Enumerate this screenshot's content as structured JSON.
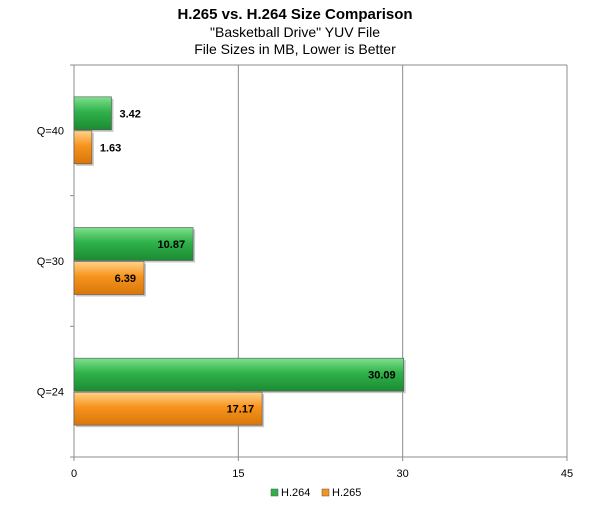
{
  "chart_data": {
    "type": "bar",
    "orientation": "horizontal",
    "title": "H.265 vs. H.264 Size Comparison",
    "subtitles": [
      "\"Basketball Drive\" YUV File",
      "File Sizes in MB, Lower is Better"
    ],
    "categories": [
      "Q=40",
      "Q=30",
      "Q=24"
    ],
    "series": [
      {
        "name": "H.264",
        "color": "#2fb24a",
        "values": [
          3.42,
          10.87,
          30.09
        ]
      },
      {
        "name": "H.265",
        "color": "#f7941d",
        "values": [
          1.63,
          6.39,
          17.17
        ]
      }
    ],
    "value_labels": {
      "H.264": [
        "3.42",
        "10.87",
        "30.09"
      ],
      "H.265": [
        "1.63",
        "6.39",
        "17.17"
      ]
    },
    "xlim": [
      0,
      45
    ],
    "xticks": [
      0,
      15,
      30,
      45
    ],
    "xtick_labels": [
      "0",
      "15",
      "30",
      "45"
    ],
    "grid": "vertical",
    "legend_position": "bottom"
  }
}
